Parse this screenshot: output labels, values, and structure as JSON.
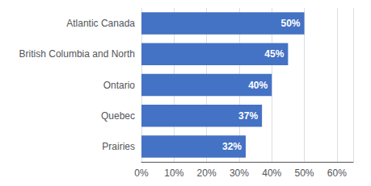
{
  "chart_data": {
    "type": "bar",
    "orientation": "horizontal",
    "categories": [
      "Atlantic Canada",
      "British Columbia and North",
      "Ontario",
      "Quebec",
      "Prairies"
    ],
    "values": [
      0.5,
      0.45,
      0.4,
      0.37,
      0.32
    ],
    "value_labels": [
      "50%",
      "45%",
      "40%",
      "37%",
      "32%"
    ],
    "data_labels": true,
    "color": "#4472C4",
    "xlim": [
      0,
      0.65
    ],
    "xticks": [
      {
        "value": 0.0,
        "label": "0%"
      },
      {
        "value": 0.1,
        "label": "10%"
      },
      {
        "value": 0.2,
        "label": "20%"
      },
      {
        "value": 0.3,
        "label": "30%"
      },
      {
        "value": 0.4,
        "label": "40%"
      },
      {
        "value": 0.5,
        "label": "50%"
      },
      {
        "value": 0.6,
        "label": "60%"
      }
    ],
    "grid": true
  }
}
